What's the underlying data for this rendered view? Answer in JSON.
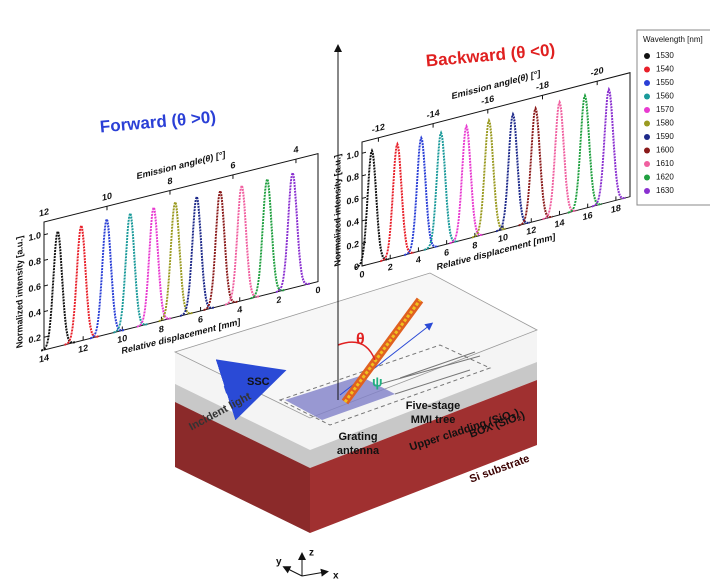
{
  "legend": {
    "title": "Wavelength [nm]",
    "series": [
      {
        "name": "1530",
        "color": "#111111"
      },
      {
        "name": "1540",
        "color": "#e8202a"
      },
      {
        "name": "1550",
        "color": "#2a3fd6"
      },
      {
        "name": "1560",
        "color": "#1a9a9a"
      },
      {
        "name": "1570",
        "color": "#e83ad0"
      },
      {
        "name": "1580",
        "color": "#9a9a20"
      },
      {
        "name": "1590",
        "color": "#1e2a8a"
      },
      {
        "name": "1600",
        "color": "#8a1a1a"
      },
      {
        "name": "1610",
        "color": "#f060a0"
      },
      {
        "name": "1620",
        "color": "#20a040"
      },
      {
        "name": "1630",
        "color": "#8a30d0"
      }
    ]
  },
  "forward": {
    "title": "Forward (θ >0)",
    "x_label": "Relative displacement [mm]",
    "top_label": "Emission angle(θ) [°]",
    "y_label": "Normalized intensity [a.u.]",
    "xlim": [
      14,
      0
    ],
    "xticks": [
      14,
      12,
      10,
      8,
      6,
      4,
      2,
      0
    ],
    "top_lim": [
      12,
      3.3
    ],
    "top_ticks": [
      12,
      10,
      8,
      6,
      4
    ],
    "ylim": [
      0.1,
      1.1
    ],
    "yticks": [
      0.2,
      0.4,
      0.6,
      0.8,
      {
        "value": 1,
        "label": "1.0"
      }
    ],
    "peak_value": 1,
    "peak_positions": [
      13.3,
      12.1,
      10.8,
      9.6,
      8.4,
      7.3,
      6.2,
      5.0,
      3.9,
      2.6,
      1.3
    ]
  },
  "backward": {
    "title": "Backward (θ <0)",
    "x_label": "Relative displacement [mm]",
    "top_label": "Emission angle(θ) [°]",
    "y_label": "Normalized intensity [a.u.]",
    "xlim": [
      0,
      19
    ],
    "xticks": [
      0,
      2,
      4,
      6,
      8,
      10,
      12,
      14,
      16,
      18
    ],
    "top_lim": [
      -11.4,
      -21.2
    ],
    "top_ticks": [
      -12,
      -14,
      -16,
      -18,
      -20
    ],
    "ylim": [
      0,
      1.1
    ],
    "yticks": [
      0,
      0.2,
      0.4,
      0.6,
      0.8,
      {
        "value": 1,
        "label": "1.0"
      }
    ],
    "peak_value": 1,
    "peak_positions": [
      0.7,
      2.5,
      4.2,
      5.6,
      7.4,
      9.0,
      10.7,
      12.3,
      14.0,
      15.8,
      17.5
    ]
  },
  "device": {
    "ssc": "SSC",
    "incident": "Incident light",
    "grating": [
      "Grating",
      "antenna"
    ],
    "mmi": [
      "Five-stage",
      "MMI tree"
    ],
    "upper": "Upper cladding (SiO₂)",
    "box": "BOX (SiO₂)",
    "substrate": "Si substrate",
    "theta": "θ",
    "psi": "ψ",
    "axes": {
      "x": "x",
      "y": "y",
      "z": "z"
    }
  }
}
